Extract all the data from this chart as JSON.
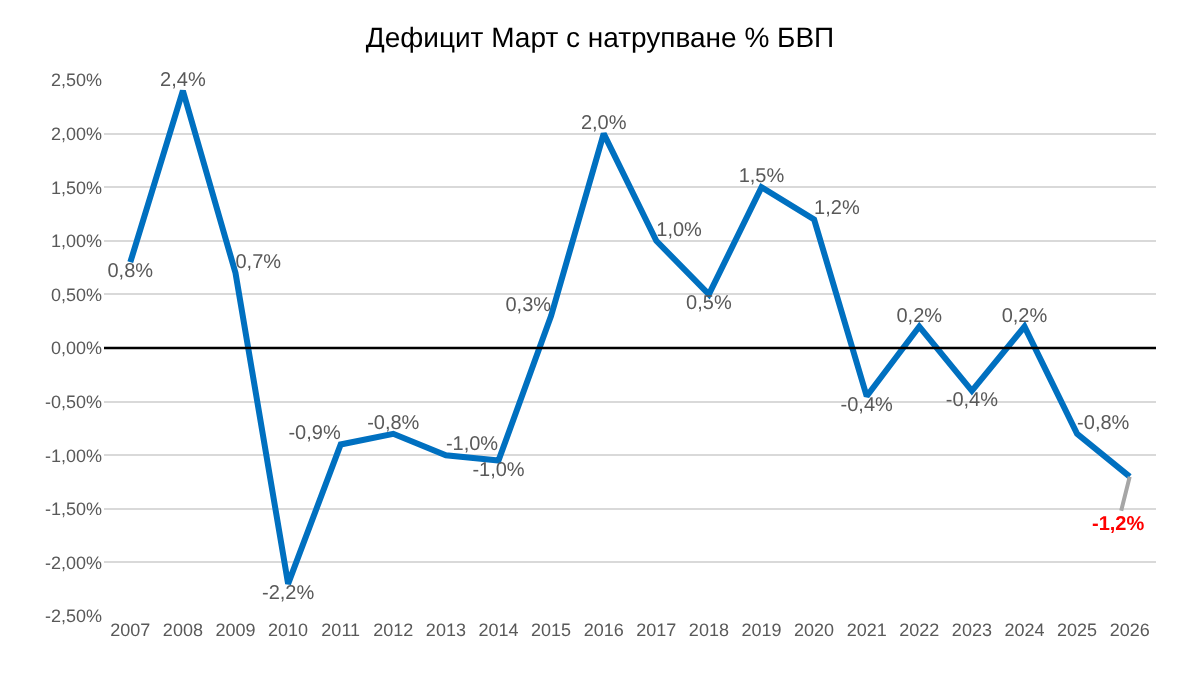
{
  "chart_data": {
    "type": "line",
    "title": "Дефицит Март с натрупване % БВП",
    "categories": [
      "2007",
      "2008",
      "2009",
      "2010",
      "2011",
      "2012",
      "2013",
      "2014",
      "2015",
      "2016",
      "2017",
      "2018",
      "2019",
      "2020",
      "2021",
      "2022",
      "2023",
      "2024",
      "2025",
      "2026"
    ],
    "series": [
      {
        "color": "#0070c0",
        "values": [
          0.8,
          2.4,
          0.7,
          -2.2,
          -0.9,
          -0.8,
          -1.0,
          -1.05,
          0.3,
          2.0,
          1.0,
          0.5,
          1.5,
          1.2,
          -0.45,
          0.2,
          -0.4,
          0.2,
          -0.8,
          -1.2
        ],
        "value_labels": [
          "0,8%",
          "2,4%",
          "0,7%",
          "-2,2%",
          "-0,9%",
          "-0,8%",
          "-1,0%",
          "-1,0%",
          "0,3%",
          "2,0%",
          "1,0%",
          "0,5%",
          "1,5%",
          "1,2%",
          "-0,4%",
          "0,2%",
          "-0,4%",
          "0,2%",
          "-0,8%",
          null
        ]
      }
    ],
    "annotations": [
      {
        "text": "-1,2%",
        "x": "2026",
        "y": -1.2
      }
    ],
    "ylim": [
      -2.5,
      2.5
    ],
    "yticks": [
      {
        "value": 2.5,
        "label": "2,50%"
      },
      {
        "value": 2,
        "label": "2,00%"
      },
      {
        "value": 1.5,
        "label": "1,50%"
      },
      {
        "value": 1,
        "label": "1,00%"
      },
      {
        "value": 0.5,
        "label": "0,50%"
      },
      {
        "value": 0,
        "label": "0,00%"
      },
      {
        "value": -0.5,
        "label": "-0,50%"
      },
      {
        "value": -1,
        "label": "-1,00%"
      },
      {
        "value": -1.5,
        "label": "-1,50%"
      },
      {
        "value": -2,
        "label": "-2,00%"
      },
      {
        "value": -2.5,
        "label": "-2,50%"
      }
    ],
    "ref_lines": [
      {
        "axis": "y",
        "value": 0,
        "color": "#000000"
      }
    ],
    "grid": "y",
    "marker": "none",
    "line_style": "solid"
  }
}
